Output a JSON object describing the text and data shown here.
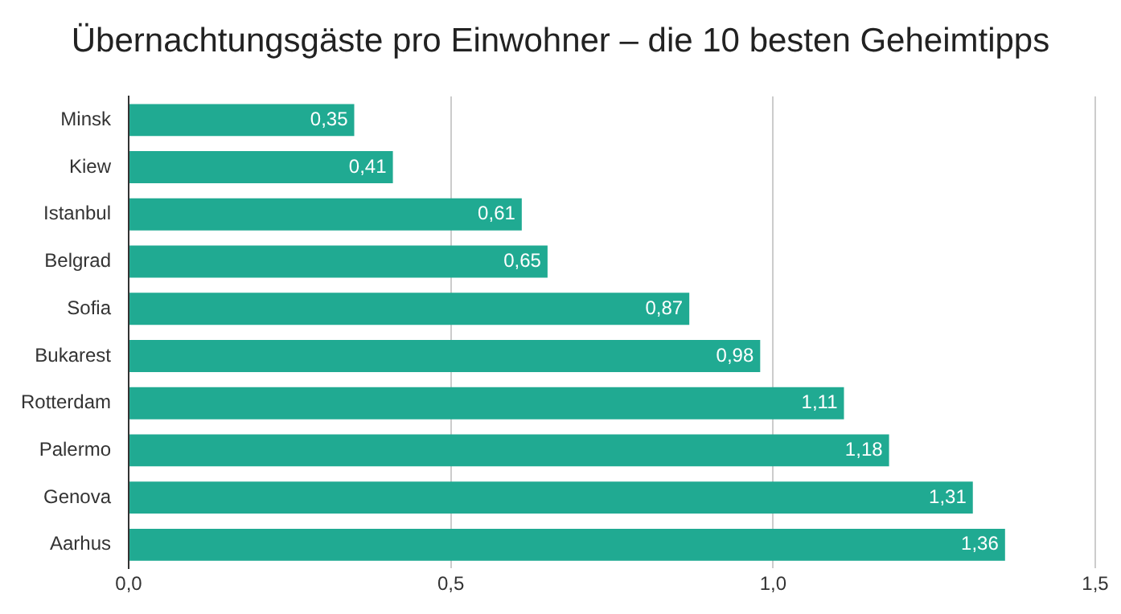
{
  "chart_data": {
    "type": "bar",
    "orientation": "horizontal",
    "title": "Übernachtungsgäste pro Einwohner – die 10 besten Geheimtipps",
    "categories": [
      "Minsk",
      "Kiew",
      "Istanbul",
      "Belgrad",
      "Sofia",
      "Bukarest",
      "Rotterdam",
      "Palermo",
      "Genova",
      "Aarhus"
    ],
    "values": [
      0.35,
      0.41,
      0.61,
      0.65,
      0.87,
      0.98,
      1.11,
      1.18,
      1.31,
      1.36
    ],
    "value_labels": [
      "0,35",
      "0,41",
      "0,61",
      "0,65",
      "0,87",
      "0,98",
      "1,11",
      "1,18",
      "1,31",
      "1,36"
    ],
    "color": "#20aa92",
    "xlim": [
      0,
      1.5
    ],
    "xticks": [
      {
        "value": 0,
        "label": "0,0"
      },
      {
        "value": 0.5,
        "label": "0,5"
      },
      {
        "value": 1,
        "label": "1,0"
      },
      {
        "value": 1.5,
        "label": "1,5"
      }
    ],
    "grid": "x",
    "legend": false
  }
}
